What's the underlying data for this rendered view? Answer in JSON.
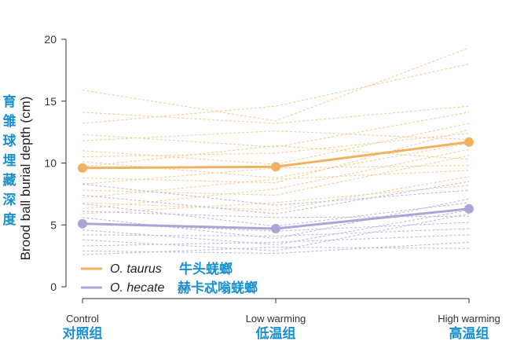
{
  "chart_data": {
    "type": "line",
    "ylabel": "Brood ball burial depth (cm)",
    "ylabel_cn": "育雏球埋藏深度",
    "categories": [
      "Control",
      "Low warming",
      "High warming"
    ],
    "categories_cn": [
      "对照组",
      "低温组",
      "高温组"
    ],
    "ylim": [
      0,
      20
    ],
    "yticks": [
      0,
      5,
      10,
      15,
      20
    ],
    "grid": false,
    "legend": "bottom-left",
    "series": [
      {
        "name": "O. taurus",
        "name_cn": "牛头蜣螂",
        "color": "#F2B160",
        "values": [
          9.6,
          9.7,
          11.7
        ]
      },
      {
        "name": "O. hecate",
        "name_cn": "赫卡忒嗡蜣螂",
        "color": "#ACA6D6",
        "values": [
          5.1,
          4.7,
          6.3
        ]
      }
    ],
    "individual_lines": [
      {
        "series": "O. taurus",
        "color": "#F6C98E",
        "values": [
          [
            15.9,
            13.4,
            19.3
          ],
          [
            14.1,
            13.2,
            14.6
          ],
          [
            13.2,
            14.6,
            18.0
          ],
          [
            12.3,
            11.3,
            14.1
          ],
          [
            11.8,
            12.6,
            11.9
          ],
          [
            11.0,
            9.9,
            13.2
          ],
          [
            10.5,
            10.8,
            12.4
          ],
          [
            10.1,
            8.8,
            11.6
          ],
          [
            9.7,
            11.4,
            10.3
          ],
          [
            8.8,
            8.4,
            12.7
          ],
          [
            8.3,
            9.6,
            9.8
          ],
          [
            7.8,
            7.4,
            10.6
          ],
          [
            7.2,
            8.7,
            9.4
          ],
          [
            6.8,
            6.2,
            8.9
          ],
          [
            6.3,
            7.9,
            11.1
          ],
          [
            5.9,
            6.8,
            8.2
          ]
        ]
      },
      {
        "series": "O. hecate",
        "color": "#B7B2DB",
        "values": [
          [
            8.3,
            6.6,
            7.8
          ],
          [
            7.4,
            5.9,
            8.5
          ],
          [
            6.7,
            4.9,
            6.8
          ],
          [
            6.1,
            5.6,
            5.7
          ],
          [
            5.6,
            3.9,
            7.1
          ],
          [
            5.1,
            4.5,
            5.2
          ],
          [
            4.6,
            3.4,
            6.2
          ],
          [
            4.2,
            4.1,
            4.7
          ],
          [
            3.8,
            2.9,
            5.9
          ],
          [
            3.3,
            3.6,
            4.2
          ],
          [
            2.9,
            2.7,
            3.6
          ],
          [
            2.6,
            3.2,
            3.1
          ]
        ]
      }
    ]
  }
}
